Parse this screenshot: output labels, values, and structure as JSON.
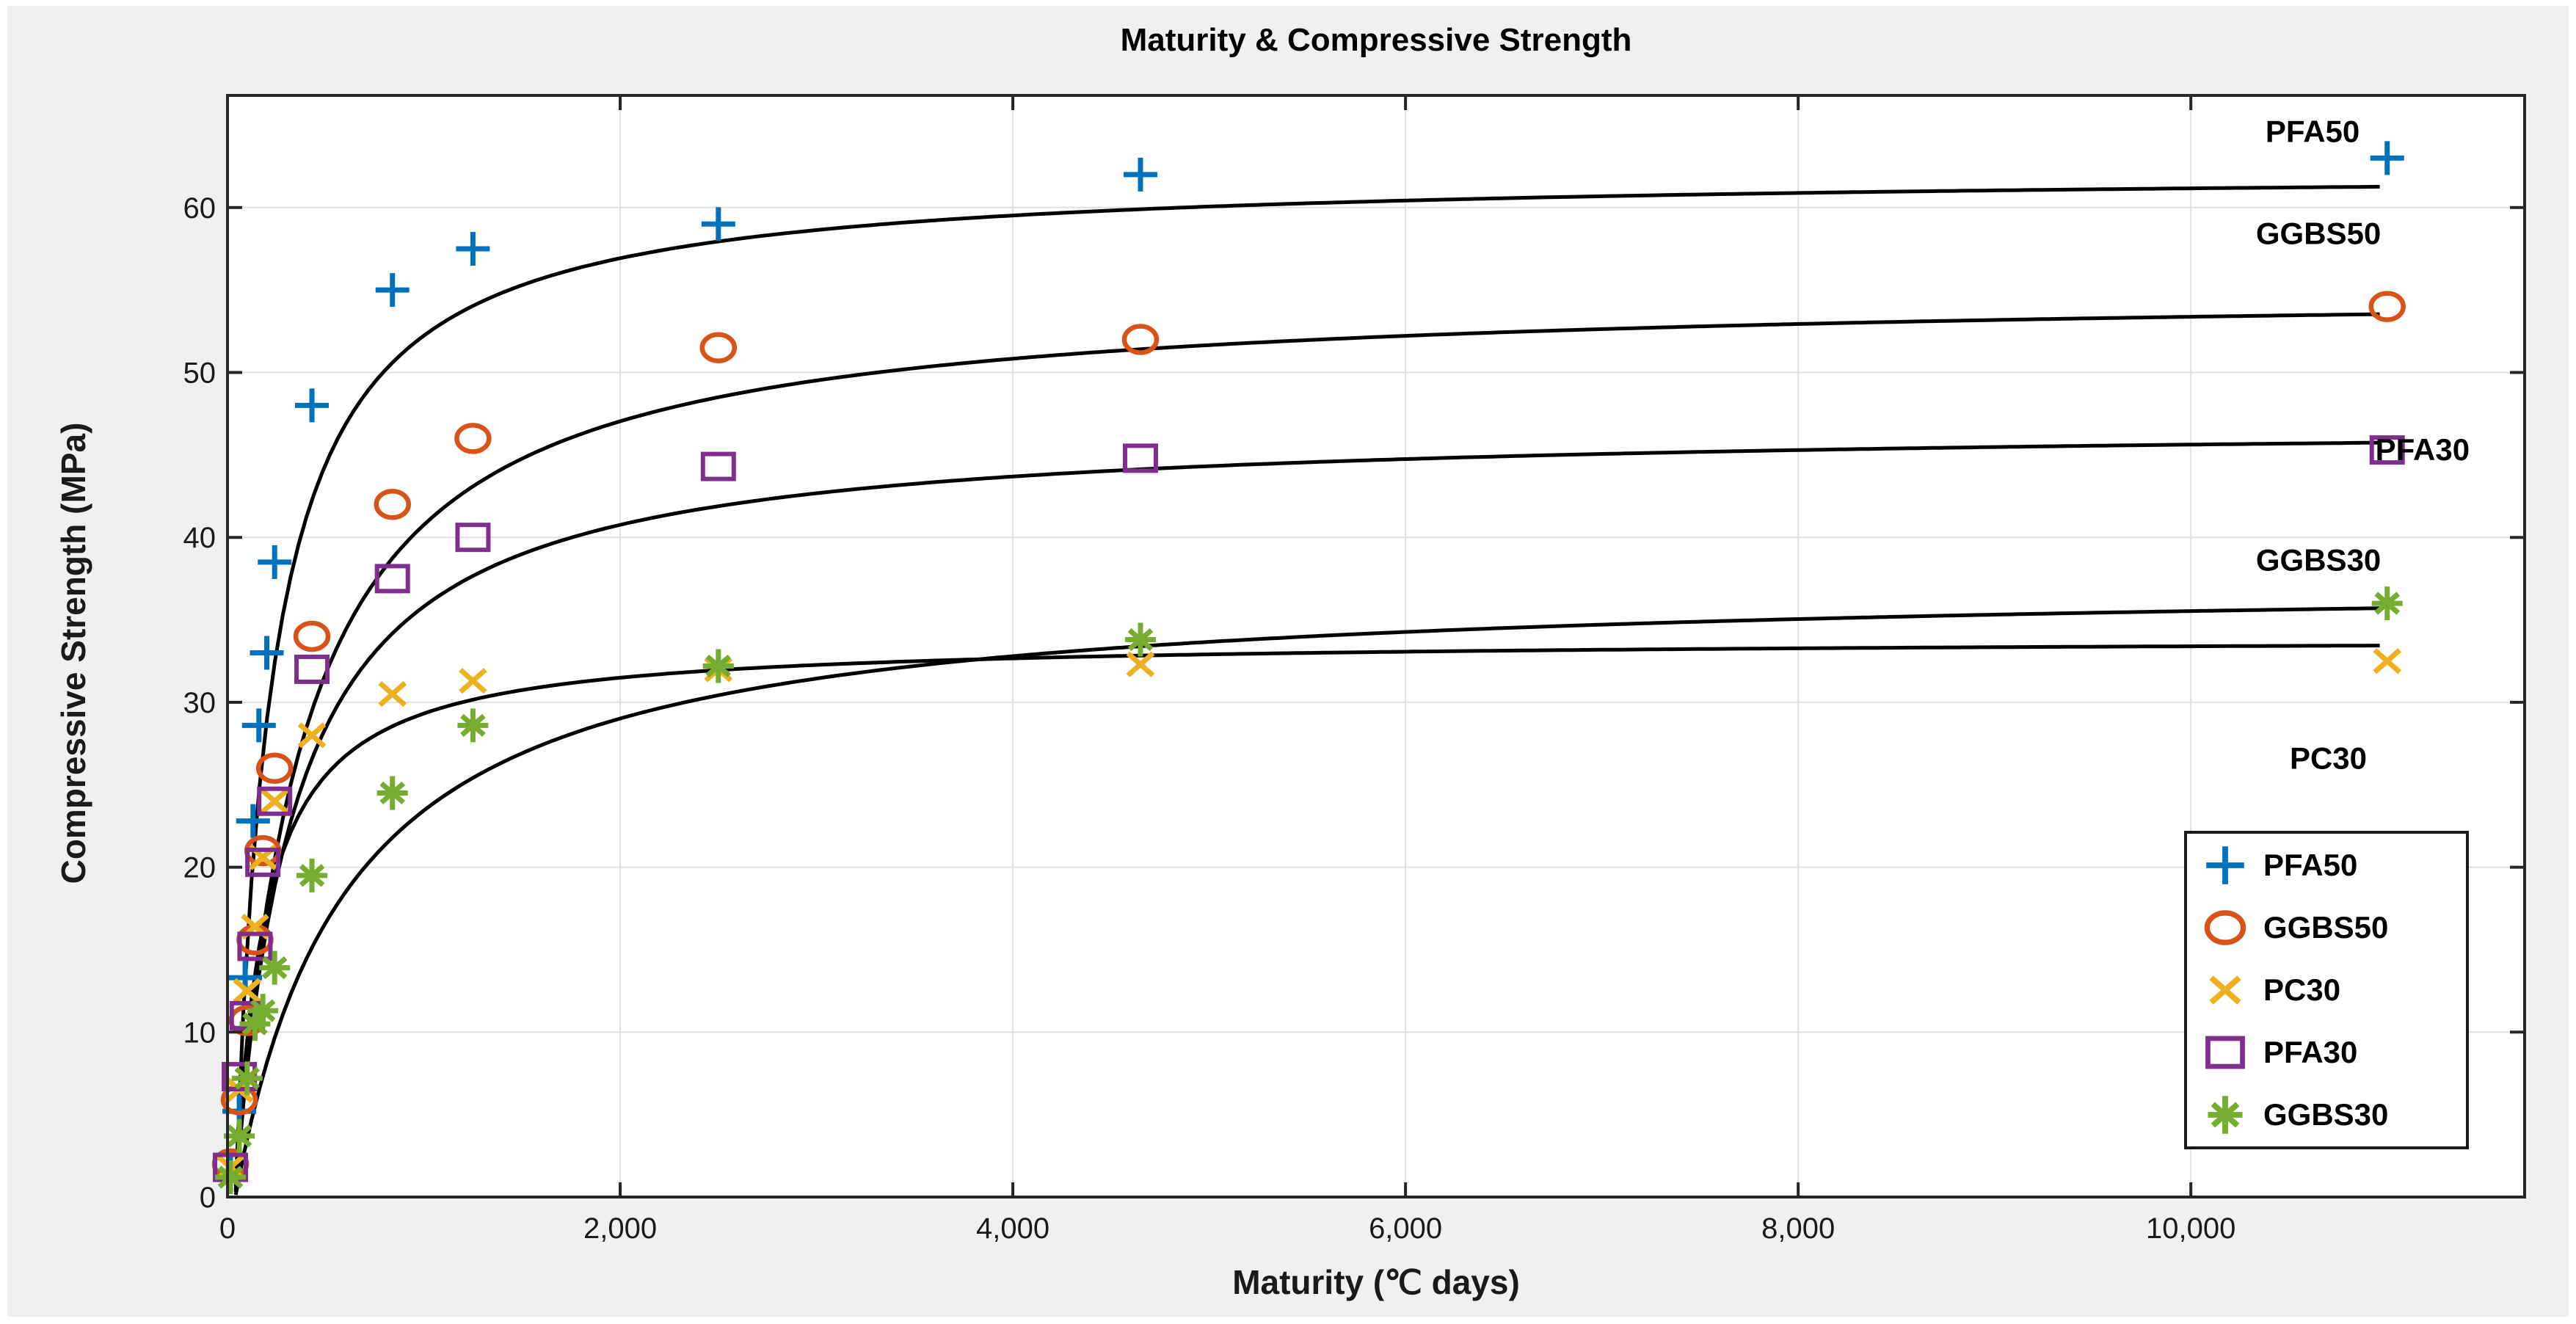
{
  "figure": {
    "title": "Maturity & Compressive Strength",
    "xlabel": "Maturity (℃ days)",
    "ylabel": "Compressive Strength (MPa)",
    "background_color": "#f0f0f0",
    "plot_background_color": "#ffffff",
    "axis_color": "#262626",
    "gridline_color": "#e0e0e0",
    "curve_color": "#000000"
  },
  "chart_data": {
    "type": "scatter",
    "title": "Maturity & Compressive Strength",
    "xlabel": "Maturity (℃ days)",
    "ylabel": "Compressive Strength (MPa)",
    "xlim": [
      0,
      11700
    ],
    "ylim": [
      0,
      66.8
    ],
    "grid": true,
    "legend_position": "inside lower right",
    "x_ticks": [
      {
        "v": 0,
        "label": "0"
      },
      {
        "v": 2000,
        "label": "2,000"
      },
      {
        "v": 4000,
        "label": "4,000"
      },
      {
        "v": 6000,
        "label": "6,000"
      },
      {
        "v": 8000,
        "label": "8,000"
      },
      {
        "v": 10000,
        "label": "10,000"
      }
    ],
    "y_ticks": [
      {
        "v": 0,
        "label": "0"
      },
      {
        "v": 10,
        "label": "10"
      },
      {
        "v": 20,
        "label": "20"
      },
      {
        "v": 30,
        "label": "30"
      },
      {
        "v": 40,
        "label": "40"
      },
      {
        "v": 50,
        "label": "50"
      },
      {
        "v": 60,
        "label": "60"
      }
    ],
    "series": [
      {
        "name": "PFA50",
        "marker": "plus",
        "color": "#0072BD",
        "points": [
          [
            15,
            1.5
          ],
          [
            60,
            5.2
          ],
          [
            90,
            13.3
          ],
          [
            130,
            22.8
          ],
          [
            160,
            28.6
          ],
          [
            200,
            33
          ],
          [
            240,
            38.5
          ],
          [
            430,
            48
          ],
          [
            840,
            55
          ],
          [
            1250,
            57.5
          ],
          [
            2500,
            59
          ],
          [
            4650,
            62
          ],
          [
            11000,
            63
          ]
        ]
      },
      {
        "name": "GGBS50",
        "marker": "circle",
        "color": "#D95319",
        "points": [
          [
            15,
            2
          ],
          [
            60,
            5.9
          ],
          [
            100,
            10.7
          ],
          [
            140,
            15.6
          ],
          [
            180,
            21
          ],
          [
            240,
            26
          ],
          [
            430,
            34
          ],
          [
            840,
            42
          ],
          [
            1250,
            46
          ],
          [
            2500,
            51.5
          ],
          [
            4650,
            52
          ],
          [
            11000,
            54
          ]
        ]
      },
      {
        "name": "PC30",
        "marker": "x",
        "color": "#EDB120",
        "points": [
          [
            15,
            1.8
          ],
          [
            60,
            6.5
          ],
          [
            100,
            12.5
          ],
          [
            140,
            16.4
          ],
          [
            180,
            20.6
          ],
          [
            240,
            24
          ],
          [
            430,
            28
          ],
          [
            840,
            30.5
          ],
          [
            1250,
            31.3
          ],
          [
            2500,
            32
          ],
          [
            4650,
            32.3
          ],
          [
            11000,
            32.5
          ]
        ]
      },
      {
        "name": "PFA30",
        "marker": "square",
        "color": "#7E2F8E",
        "points": [
          [
            15,
            1.8
          ],
          [
            60,
            7.3
          ],
          [
            100,
            11
          ],
          [
            140,
            15.2
          ],
          [
            180,
            20.3
          ],
          [
            240,
            24
          ],
          [
            430,
            32
          ],
          [
            840,
            37.5
          ],
          [
            1250,
            40
          ],
          [
            2500,
            44.3
          ],
          [
            4650,
            44.8
          ],
          [
            11000,
            45.3
          ]
        ]
      },
      {
        "name": "GGBS30",
        "marker": "asterisk",
        "color": "#77AC30",
        "points": [
          [
            15,
            1.2
          ],
          [
            60,
            3.7
          ],
          [
            100,
            7.2
          ],
          [
            140,
            10.5
          ],
          [
            180,
            11.3
          ],
          [
            240,
            13.9
          ],
          [
            430,
            19.5
          ],
          [
            840,
            24.5
          ],
          [
            1250,
            28.6
          ],
          [
            2500,
            32.2
          ],
          [
            4650,
            33.8
          ],
          [
            11000,
            36
          ]
        ]
      }
    ],
    "fitted_curves": [
      {
        "series": "PFA50",
        "model": "y = a*(x-x0)/(k+(x-x0))",
        "a": 62.3,
        "k": 185,
        "x0": 40,
        "x_end": 11000
      },
      {
        "series": "GGBS50",
        "model": "y = a*(x-x0)/(k+(x-x0))",
        "a": 55.2,
        "k": 340,
        "x0": 40,
        "x_end": 11000
      },
      {
        "series": "PFA30",
        "model": "y = a*(x-x0)/(k+(x-x0))",
        "a": 47.0,
        "k": 300,
        "x0": 40,
        "x_end": 11000
      },
      {
        "series": "GGBS30",
        "model": "y = a*(x-x0)/(k+(x-x0))",
        "a": 37.6,
        "k": 580,
        "x0": 40,
        "x_end": 11000
      },
      {
        "series": "PC30",
        "model": "y = a*(x-x0)/(k+(x-x0))",
        "a": 33.9,
        "k": 150,
        "x0": 40,
        "x_end": 11000
      }
    ],
    "curve_labels": [
      {
        "text": "PFA50",
        "x": 10620,
        "y": 64.6
      },
      {
        "text": "GGBS50",
        "x": 10650,
        "y": 58.4
      },
      {
        "text": "PFA30",
        "x": 11180,
        "y": 45.3
      },
      {
        "text": "GGBS30",
        "x": 10650,
        "y": 38.6
      },
      {
        "text": "PC30",
        "x": 10700,
        "y": 26.6
      }
    ],
    "legend_entries": [
      "PFA50",
      "GGBS50",
      "PC30",
      "PFA30",
      "GGBS30"
    ]
  }
}
